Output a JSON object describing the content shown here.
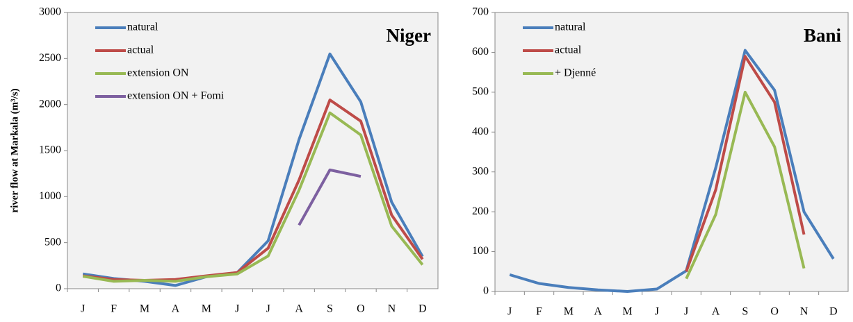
{
  "chart_data": [
    {
      "type": "line",
      "title": "Niger",
      "y_label": "river flow at Markala (m³/s)",
      "categories": [
        "J",
        "F",
        "M",
        "A",
        "M",
        "J",
        "J",
        "A",
        "S",
        "O",
        "N",
        "D"
      ],
      "ylim": [
        0,
        3000
      ],
      "yticks": [
        0,
        500,
        1000,
        1500,
        2000,
        2500,
        3000
      ],
      "series": [
        {
          "name": "natural",
          "color": "#4a7ebb",
          "values": [
            160,
            110,
            80,
            35,
            130,
            175,
            520,
            1620,
            2550,
            2030,
            940,
            350
          ]
        },
        {
          "name": "actual",
          "color": "#be4b48",
          "values": [
            140,
            100,
            90,
            100,
            140,
            175,
            440,
            1180,
            2050,
            1820,
            800,
            320
          ]
        },
        {
          "name": "extension ON",
          "color": "#98b954",
          "values": [
            135,
            80,
            90,
            80,
            130,
            160,
            355,
            1070,
            1910,
            1670,
            680,
            260
          ]
        },
        {
          "name": "extension ON + Fomi",
          "color": "#7d60a0",
          "values": [
            null,
            null,
            null,
            null,
            null,
            null,
            null,
            690,
            1290,
            1220,
            null,
            null
          ]
        }
      ]
    },
    {
      "type": "line",
      "title": "Bani",
      "categories": [
        "J",
        "F",
        "M",
        "A",
        "M",
        "J",
        "J",
        "A",
        "S",
        "O",
        "N",
        "D"
      ],
      "ylim": [
        0,
        700
      ],
      "yticks": [
        0,
        100,
        200,
        300,
        400,
        500,
        600,
        700
      ],
      "series": [
        {
          "name": "natural",
          "color": "#4a7ebb",
          "values": [
            42,
            20,
            10,
            4,
            0,
            6,
            52,
            310,
            605,
            505,
            200,
            82
          ]
        },
        {
          "name": "actual",
          "color": "#be4b48",
          "values": [
            null,
            null,
            null,
            null,
            null,
            null,
            50,
            255,
            590,
            475,
            143,
            null
          ]
        },
        {
          "name": "+ Djenné",
          "color": "#98b954",
          "values": [
            null,
            null,
            null,
            null,
            null,
            null,
            32,
            193,
            500,
            363,
            58,
            null
          ]
        }
      ]
    }
  ]
}
